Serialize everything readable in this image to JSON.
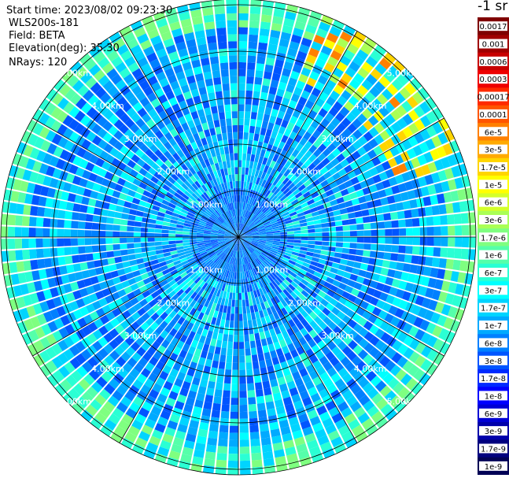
{
  "info": {
    "start_time": "Start time: 2023/08/02 09:23:30",
    "radar": "WLS200s-181",
    "field": "Field: BETA",
    "elevation": "Elevation(deg): 35.30",
    "nrays": "NRays: 120"
  },
  "colorbar": {
    "units": "-1 sr",
    "labels": [
      "0.0017",
      "0.001",
      "0.0006",
      "0.0003",
      "0.00017",
      "0.0001",
      "6e-5",
      "3e-5",
      "1.7e-5",
      "1e-5",
      "6e-6",
      "3e-6",
      "1.7e-6",
      "1e-6",
      "6e-7",
      "3e-7",
      "1.7e-7",
      "1e-7",
      "6e-8",
      "3e-8",
      "1.7e-8",
      "1e-8",
      "6e-9",
      "3e-9",
      "1.7e-9",
      "1e-9"
    ],
    "colors": [
      "#7f0000",
      "#a00000",
      "#c80000",
      "#ee0000",
      "#ff2a00",
      "#ff5500",
      "#ff8000",
      "#ffaa00",
      "#ffd500",
      "#ffff00",
      "#d4ff2a",
      "#aaff55",
      "#7fff80",
      "#55ffaa",
      "#2affd4",
      "#00ffff",
      "#00d4ff",
      "#00aaff",
      "#0080ff",
      "#0055ff",
      "#002aff",
      "#0000ff",
      "#0000d4",
      "#0000aa",
      "#00007f",
      "#000055"
    ]
  },
  "range_rings": {
    "labels": [
      "1.00km",
      "2.00km",
      "3.00km",
      "4.00km",
      "5.00km"
    ]
  }
}
